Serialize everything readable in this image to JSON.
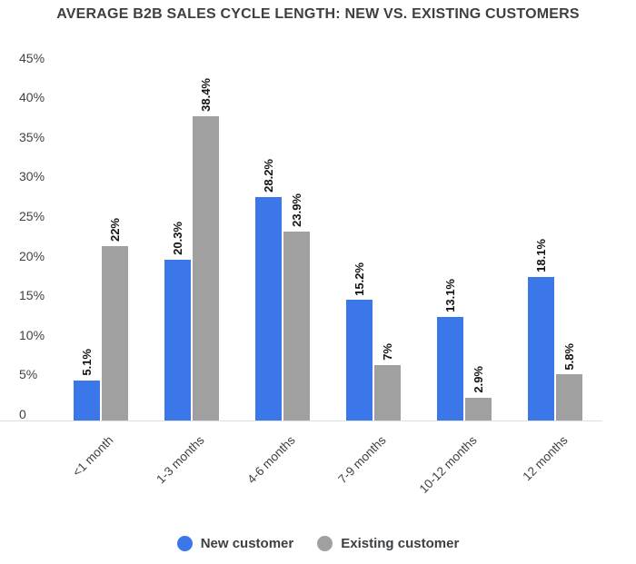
{
  "title": "AVERAGE B2B SALES CYCLE LENGTH: NEW VS. EXISTING CUSTOMERS",
  "chart_data": {
    "type": "bar",
    "title": "AVERAGE B2B SALES CYCLE LENGTH: NEW VS. EXISTING CUSTOMERS",
    "categories": [
      "<1 month",
      "1-3 months",
      "4-6 months",
      "7-9 months",
      "10-12 months",
      "12 months"
    ],
    "series": [
      {
        "name": "New customer",
        "color": "#3b77e8",
        "values": [
          5.1,
          20.3,
          28.2,
          15.2,
          13.1,
          18.1
        ],
        "labels": [
          "5.1%",
          "20.3%",
          "28.2%",
          "15.2%",
          "13.1%",
          "18.1%"
        ]
      },
      {
        "name": "Existing customer",
        "color": "#a0a0a0",
        "values": [
          22,
          38.4,
          23.9,
          7,
          2.9,
          5.8
        ],
        "labels": [
          "22%",
          "38.4%",
          "23.9%",
          "7%",
          "2.9%",
          "5.8%"
        ]
      }
    ],
    "xlabel": "",
    "ylabel": "",
    "ylim": [
      0,
      45
    ],
    "yticks": [
      "45%",
      "40%",
      "35%",
      "30%",
      "25%",
      "20%",
      "15%",
      "10%",
      "5%",
      "0"
    ],
    "ytick_values": [
      45,
      40,
      35,
      30,
      25,
      20,
      15,
      10,
      5,
      0
    ],
    "grid": false,
    "legend_position": "bottom",
    "axis_line_color": "#dedede",
    "value_label_color": "#141414"
  }
}
